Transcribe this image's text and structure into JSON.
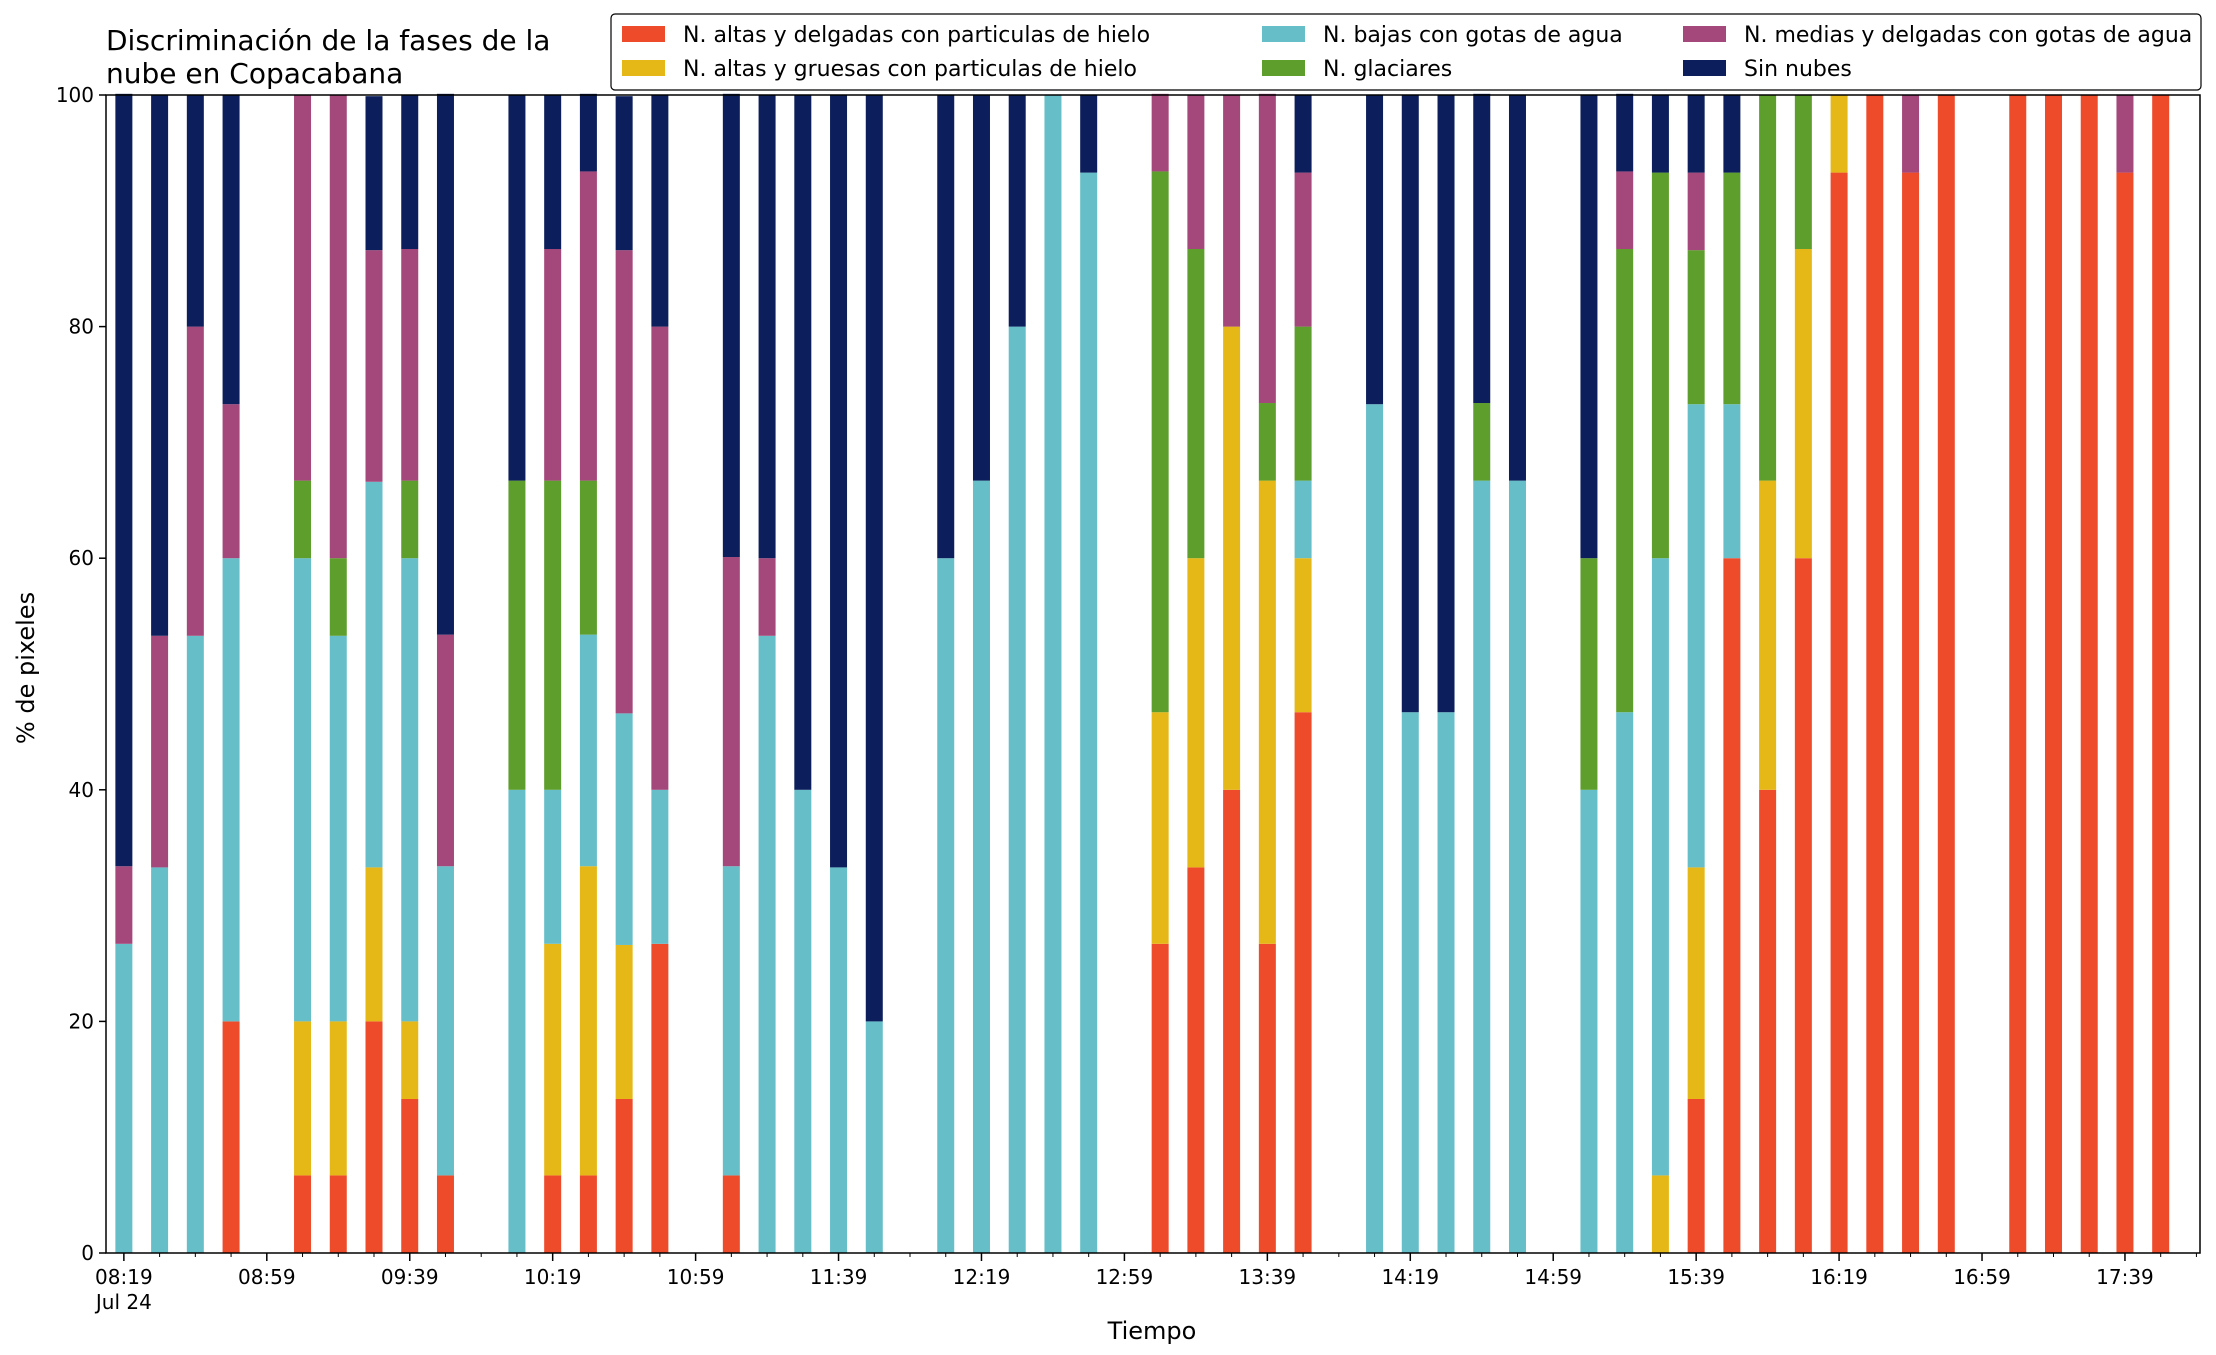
{
  "chart_data": {
    "type": "bar",
    "stacked": true,
    "title_lines": [
      "Discriminación de la fases de la",
      "nube en Copacabana"
    ],
    "xlabel": "Tiempo",
    "ylabel": "% de pixeles",
    "ylim": [
      0,
      100
    ],
    "yticks": [
      0,
      20,
      40,
      60,
      80,
      100
    ],
    "x_time_range_minutes": [
      "08:14",
      "18:00"
    ],
    "xtick_labels": [
      "08:19",
      "08:59",
      "09:39",
      "10:19",
      "10:59",
      "11:39",
      "12:19",
      "12:59",
      "13:39",
      "14:19",
      "14:59",
      "15:39",
      "16:19",
      "16:59",
      "17:39"
    ],
    "xtick_sublabel": "Jul 24",
    "minor_ticks_every_minutes": 10,
    "grid": false,
    "legend_position": "top-right",
    "series": [
      {
        "name": "N. altas y delgadas con particulas de hielo",
        "color": "#ee4b2b"
      },
      {
        "name": "N. altas y gruesas con particulas de hielo",
        "color": "#e6b817"
      },
      {
        "name": "N. bajas con gotas de agua",
        "color": "#66bec9"
      },
      {
        "name": "N. glaciares",
        "color": "#5d9e2c"
      },
      {
        "name": "N. medias y delgadas con gotas de agua",
        "color": "#a4477a"
      },
      {
        "name": "Sin nubes",
        "color": "#0c1f5c"
      }
    ],
    "stack_order": [
      "N. altas y delgadas con particulas de hielo",
      "N. altas y gruesas con particulas de hielo",
      "N. bajas con gotas de agua",
      "N. glaciares",
      "N. medias y delgadas con gotas de agua",
      "Sin nubes"
    ],
    "bars": [
      {
        "time": "08:19",
        "values": [
          0,
          0,
          26.7,
          0,
          6.7,
          66.7
        ]
      },
      {
        "time": "08:29",
        "values": [
          0,
          0,
          33.3,
          0,
          20,
          46.7
        ]
      },
      {
        "time": "08:39",
        "values": [
          0,
          0,
          53.3,
          0,
          26.7,
          20
        ]
      },
      {
        "time": "08:49",
        "values": [
          20,
          0,
          40,
          0,
          13.3,
          26.7
        ]
      },
      {
        "time": "09:09",
        "values": [
          6.7,
          13.3,
          40,
          6.7,
          33.3,
          0
        ]
      },
      {
        "time": "09:19",
        "values": [
          6.7,
          13.3,
          33.3,
          6.7,
          40,
          0
        ]
      },
      {
        "time": "09:29",
        "values": [
          20,
          13.3,
          33.3,
          0,
          20,
          13.3
        ]
      },
      {
        "time": "09:39",
        "values": [
          13.3,
          6.7,
          40,
          6.7,
          20,
          13.3
        ]
      },
      {
        "time": "09:49",
        "values": [
          6.7,
          0,
          26.7,
          0,
          20,
          46.7
        ]
      },
      {
        "time": "10:09",
        "values": [
          0,
          0,
          40,
          26.7,
          0,
          33.3
        ]
      },
      {
        "time": "10:19",
        "values": [
          6.7,
          20,
          13.3,
          26.7,
          20,
          13.3
        ]
      },
      {
        "time": "10:29",
        "values": [
          6.7,
          26.7,
          20,
          13.3,
          26.7,
          6.7
        ]
      },
      {
        "time": "10:39",
        "values": [
          13.3,
          13.3,
          20,
          0,
          40,
          13.3
        ]
      },
      {
        "time": "10:49",
        "values": [
          26.7,
          0,
          13.3,
          0,
          40,
          20
        ]
      },
      {
        "time": "11:09",
        "values": [
          6.7,
          0,
          26.7,
          0,
          26.7,
          40
        ]
      },
      {
        "time": "11:19",
        "values": [
          0,
          0,
          53.3,
          0,
          6.7,
          40
        ]
      },
      {
        "time": "11:29",
        "values": [
          0,
          0,
          40,
          0,
          0,
          60
        ]
      },
      {
        "time": "11:39",
        "values": [
          0,
          0,
          33.3,
          0,
          0,
          66.7
        ]
      },
      {
        "time": "11:49",
        "values": [
          0,
          0,
          20,
          0,
          0,
          80
        ]
      },
      {
        "time": "12:09",
        "values": [
          0,
          0,
          60,
          0,
          0,
          40
        ]
      },
      {
        "time": "12:19",
        "values": [
          0,
          0,
          66.7,
          0,
          0,
          33.3
        ]
      },
      {
        "time": "12:29",
        "values": [
          0,
          0,
          80,
          0,
          0,
          20
        ]
      },
      {
        "time": "12:39",
        "values": [
          0,
          0,
          100,
          0,
          0,
          0
        ]
      },
      {
        "time": "12:49",
        "values": [
          0,
          0,
          93.3,
          0,
          0,
          6.7
        ]
      },
      {
        "time": "13:09",
        "values": [
          26.7,
          20,
          0,
          46.7,
          6.7,
          0
        ]
      },
      {
        "time": "13:19",
        "values": [
          33.3,
          26.7,
          0,
          26.7,
          13.3,
          0
        ]
      },
      {
        "time": "13:29",
        "values": [
          40,
          40,
          0,
          0,
          20,
          0
        ]
      },
      {
        "time": "13:39",
        "values": [
          26.7,
          40,
          0,
          6.7,
          26.7,
          0
        ]
      },
      {
        "time": "13:49",
        "values": [
          46.7,
          13.3,
          6.7,
          13.3,
          13.3,
          6.7
        ]
      },
      {
        "time": "14:09",
        "values": [
          0,
          0,
          73.3,
          0,
          0,
          26.7
        ]
      },
      {
        "time": "14:19",
        "values": [
          0,
          0,
          46.7,
          0,
          0,
          53.3
        ]
      },
      {
        "time": "14:29",
        "values": [
          0,
          0,
          46.7,
          0,
          0,
          53.3
        ]
      },
      {
        "time": "14:39",
        "values": [
          0,
          0,
          66.7,
          6.7,
          0,
          26.7
        ]
      },
      {
        "time": "14:49",
        "values": [
          0,
          0,
          66.7,
          0,
          0,
          33.3
        ]
      },
      {
        "time": "15:09",
        "values": [
          0,
          0,
          40,
          20,
          0,
          40
        ]
      },
      {
        "time": "15:19",
        "values": [
          0,
          0,
          46.7,
          40,
          6.7,
          6.7
        ]
      },
      {
        "time": "15:29",
        "values": [
          0,
          6.7,
          53.3,
          33.3,
          0,
          6.7
        ]
      },
      {
        "time": "15:39",
        "values": [
          13.3,
          20,
          40,
          13.3,
          6.7,
          6.7
        ]
      },
      {
        "time": "15:49",
        "values": [
          60,
          0,
          13.3,
          20,
          0,
          6.7
        ]
      },
      {
        "time": "15:59",
        "values": [
          40,
          26.7,
          0,
          33.3,
          0,
          0
        ]
      },
      {
        "time": "16:09",
        "values": [
          60,
          26.7,
          0,
          13.3,
          0,
          0
        ]
      },
      {
        "time": "16:19",
        "values": [
          93.3,
          6.7,
          0,
          0,
          0,
          0
        ]
      },
      {
        "time": "16:29",
        "values": [
          100,
          0,
          0,
          0,
          0,
          0
        ]
      },
      {
        "time": "16:39",
        "values": [
          93.3,
          0,
          0,
          0,
          6.7,
          0
        ]
      },
      {
        "time": "16:49",
        "values": [
          100,
          0,
          0,
          0,
          0,
          0
        ]
      },
      {
        "time": "17:09",
        "values": [
          100,
          0,
          0,
          0,
          0,
          0
        ]
      },
      {
        "time": "17:19",
        "values": [
          100,
          0,
          0,
          0,
          0,
          0
        ]
      },
      {
        "time": "17:29",
        "values": [
          100,
          0,
          0,
          0,
          0,
          0
        ]
      },
      {
        "time": "17:39",
        "values": [
          93.3,
          0,
          0,
          0,
          6.7,
          0
        ]
      },
      {
        "time": "17:49",
        "values": [
          100,
          0,
          0,
          0,
          0,
          0
        ]
      }
    ]
  }
}
